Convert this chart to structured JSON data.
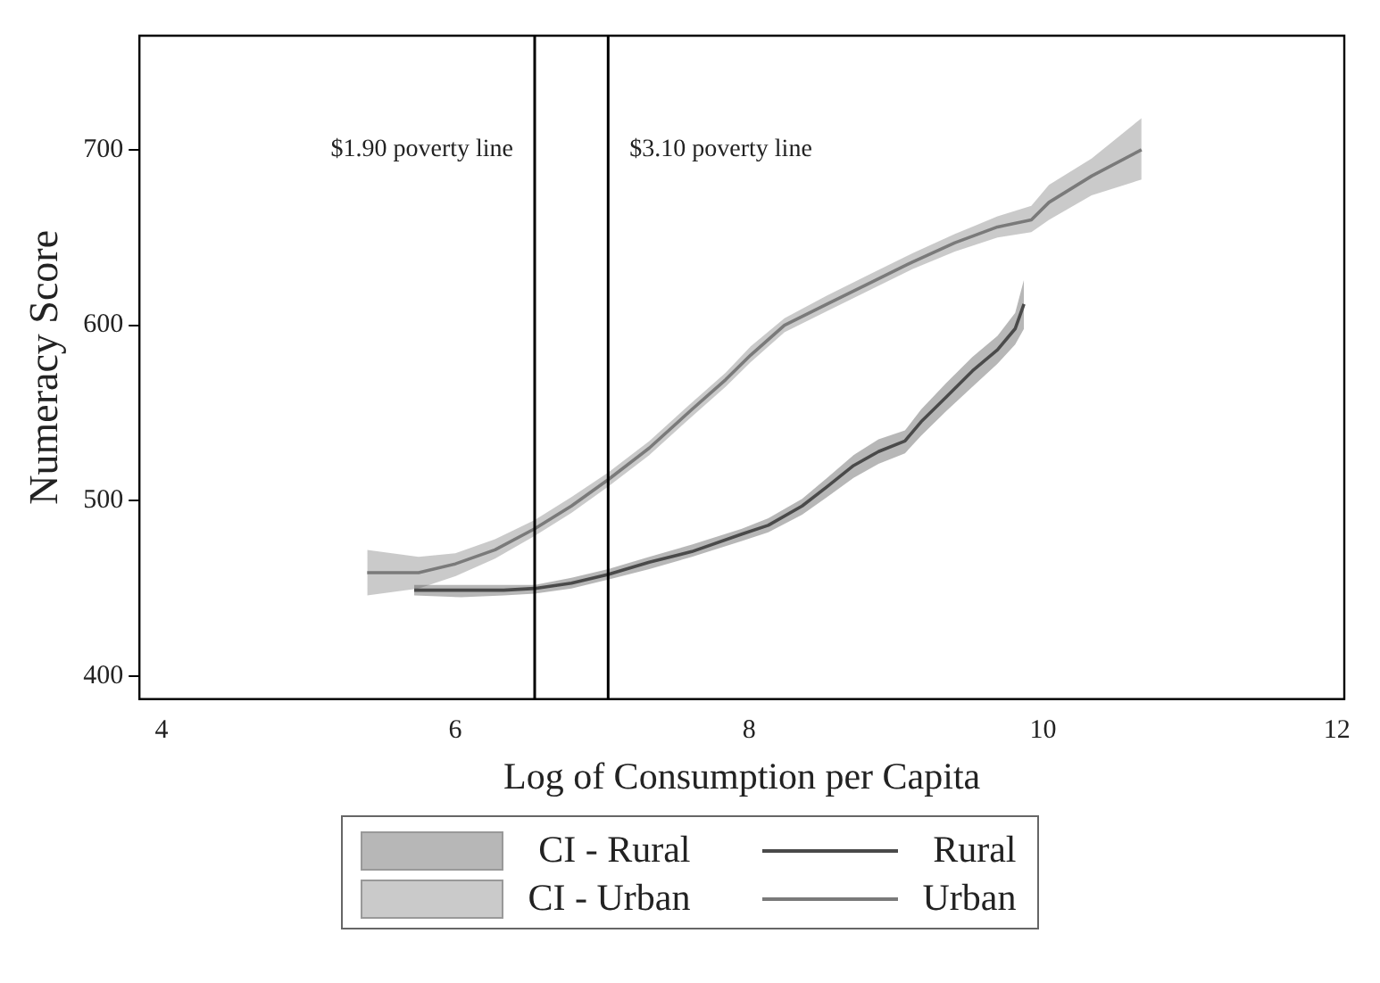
{
  "chart_data": {
    "type": "line",
    "xlabel": "Log of Consumption per Capita",
    "ylabel": "Numeracy Score",
    "xlim": [
      3.85,
      12.05
    ],
    "ylim": [
      387,
      765
    ],
    "xticks": [
      4,
      6,
      8,
      10,
      12
    ],
    "yticks": [
      400,
      500,
      600,
      700
    ],
    "grid": false,
    "legend": "bottom",
    "marker": "none",
    "line_style": "solid",
    "annotations": [
      "CI - Rural",
      "CI - Urban"
    ],
    "ref_lines": [
      {
        "axis": "x",
        "value": 6.54,
        "label": "$1.90 poverty line"
      },
      {
        "axis": "x",
        "value": 7.04,
        "label": "$3.10 poverty line"
      }
    ],
    "series": [
      {
        "name": "Rural",
        "color": "#4a4a4a",
        "x": [
          5.72,
          6.04,
          6.33,
          6.54,
          6.79,
          7.04,
          7.32,
          7.61,
          7.95,
          8.13,
          8.36,
          8.53,
          8.71,
          8.88,
          9.06,
          9.17,
          9.34,
          9.52,
          9.69,
          9.81,
          9.87
        ],
        "values": [
          449,
          449,
          449,
          450,
          453,
          458,
          465,
          471,
          481,
          486,
          497,
          508,
          520,
          528,
          534,
          545,
          559,
          574,
          586,
          598,
          612
        ],
        "lower": [
          446,
          445,
          446,
          447,
          450,
          455,
          461,
          468,
          477,
          482,
          492,
          502,
          513,
          521,
          527,
          537,
          551,
          565,
          578,
          589,
          598
        ],
        "upper": [
          452,
          452,
          452,
          452,
          456,
          461,
          468,
          475,
          484,
          490,
          501,
          513,
          526,
          535,
          540,
          552,
          567,
          582,
          594,
          607,
          626
        ]
      },
      {
        "name": "Urban",
        "color": "#7a7a7a",
        "x": [
          5.4,
          5.75,
          6.0,
          6.27,
          6.54,
          6.79,
          7.04,
          7.32,
          7.61,
          7.84,
          8.01,
          8.24,
          8.53,
          8.82,
          9.11,
          9.4,
          9.69,
          9.92,
          10.04,
          10.33,
          10.67
        ],
        "values": [
          459,
          459,
          464,
          472,
          484,
          497,
          512,
          530,
          552,
          569,
          583,
          600,
          612,
          624,
          636,
          647,
          656,
          660,
          670,
          685,
          700
        ],
        "lower": [
          446,
          450,
          457,
          467,
          480,
          493,
          508,
          526,
          548,
          565,
          579,
          596,
          608,
          620,
          632,
          642,
          650,
          653,
          660,
          674,
          683
        ],
        "upper": [
          472,
          468,
          470,
          478,
          489,
          502,
          516,
          534,
          556,
          573,
          588,
          604,
          617,
          629,
          641,
          652,
          662,
          668,
          680,
          695,
          718
        ]
      }
    ]
  }
}
